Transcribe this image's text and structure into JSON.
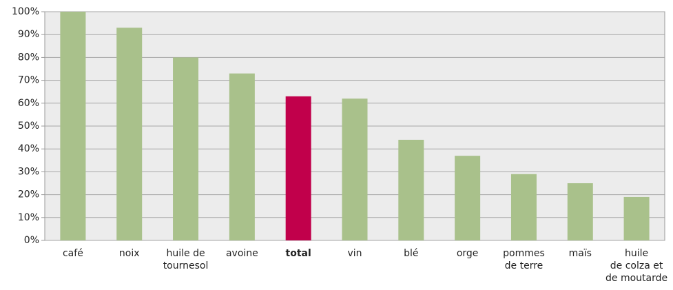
{
  "chart_data": {
    "type": "bar",
    "categories": [
      "café",
      "noix",
      "huile de\ntournesol",
      "avoine",
      "total",
      "vin",
      "blé",
      "orge",
      "pommes\nde terre",
      "maïs",
      "huile\nde colza et\nde moutarde"
    ],
    "values": [
      100,
      93,
      80,
      73,
      63,
      62,
      44,
      37,
      29,
      25,
      19
    ],
    "color": "#a9c18b",
    "highlight": 4,
    "highlight_color": "#c1004b",
    "ylim": [
      0,
      100
    ],
    "yticks": [
      {
        "value": 0,
        "label": "0%"
      },
      {
        "value": 10,
        "label": "10%"
      },
      {
        "value": 20,
        "label": "20%"
      },
      {
        "value": 30,
        "label": "30%"
      },
      {
        "value": 40,
        "label": "40%"
      },
      {
        "value": 50,
        "label": "50%"
      },
      {
        "value": 60,
        "label": "60%"
      },
      {
        "value": 70,
        "label": "70%"
      },
      {
        "value": 80,
        "label": "80%"
      },
      {
        "value": 90,
        "label": "90%"
      },
      {
        "value": 100,
        "label": "100%"
      }
    ],
    "grid": true
  }
}
